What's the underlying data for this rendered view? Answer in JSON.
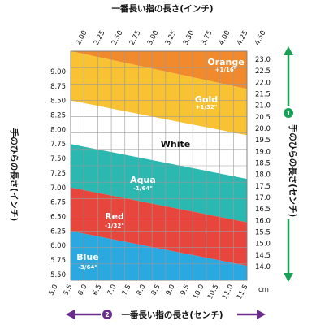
{
  "chart_data": {
    "type": "area",
    "title": "",
    "top_axis": {
      "label": "一番長い指の長さ(インチ)",
      "ticks": [
        "2.00",
        "2.25",
        "2.50",
        "2.75",
        "3.00",
        "3.25",
        "3.50",
        "3.75",
        "4.00",
        "4.25",
        "4.50"
      ],
      "range": [
        2.0,
        4.5
      ]
    },
    "bottom_axis": {
      "label_number": "2",
      "label": "一番長い指の長さ(センチ)",
      "ticks": [
        "5.0",
        "5.5",
        "6.0",
        "6.5",
        "7.0",
        "7.5",
        "8.0",
        "8.5",
        "9.0",
        "9.5",
        "10.0",
        "10.5",
        "11.0",
        "11.5"
      ],
      "unit": "cm",
      "range": [
        5.0,
        11.5
      ]
    },
    "left_axis": {
      "label": "手のひらの長さ(インチ)",
      "ticks": [
        "5.50",
        "5.75",
        "6.00",
        "6.25",
        "6.50",
        "6.75",
        "7.00",
        "7.25",
        "7.50",
        "7.75",
        "8.00",
        "8.25",
        "8.50",
        "8.75",
        "9.00"
      ],
      "range": [
        5.5,
        9.0
      ]
    },
    "right_axis": {
      "label_number": "1",
      "label": "手のひらの長さ(センチ)",
      "ticks": [
        "14.0",
        "14.5",
        "15.0",
        "15.5",
        "16.0",
        "16.5",
        "17.0",
        "17.5",
        "18.0",
        "18.5",
        "19.0",
        "19.5",
        "20.0",
        "20.5",
        "21.0",
        "21.5",
        "22.0",
        "22.5",
        "23.0"
      ],
      "range": [
        14.0,
        23.0
      ]
    },
    "grid": true,
    "bands": [
      {
        "name": "Orange",
        "adjustment": "+1/16\"",
        "color": "#f08a2c",
        "text_color": "#ffffff",
        "lower_left": 9.35,
        "lower_right": 8.7,
        "upper_left": 9.35,
        "upper_right": 9.35
      },
      {
        "name": "Gold",
        "adjustment": "+1/32\"",
        "color": "#f9c232",
        "text_color": "#ffffff",
        "lower_left": 8.5,
        "lower_right": 7.9,
        "upper_left": 9.35,
        "upper_right": 8.7
      },
      {
        "name": "White",
        "adjustment": "",
        "color": "#ffffff",
        "text_color": "#111111",
        "lower_left": 7.75,
        "lower_right": 7.15,
        "upper_left": 8.5,
        "upper_right": 7.9
      },
      {
        "name": "Aqua",
        "adjustment": "-1/64\"",
        "color": "#2bb8b0",
        "text_color": "#ffffff",
        "lower_left": 7.0,
        "lower_right": 6.4,
        "upper_left": 7.75,
        "upper_right": 7.15
      },
      {
        "name": "Red",
        "adjustment": "-1/32\"",
        "color": "#e8463c",
        "text_color": "#ffffff",
        "lower_left": 6.25,
        "lower_right": 5.65,
        "upper_left": 7.0,
        "upper_right": 6.4
      },
      {
        "name": "Blue",
        "adjustment": "-3/64\"",
        "color": "#2aa8e0",
        "text_color": "#ffffff",
        "lower_left": 5.4,
        "lower_right": 5.4,
        "upper_left": 6.25,
        "upper_right": 5.65
      }
    ],
    "arrow_color": "#18a055",
    "bottom_arrow_color": "#6a2c8a"
  }
}
